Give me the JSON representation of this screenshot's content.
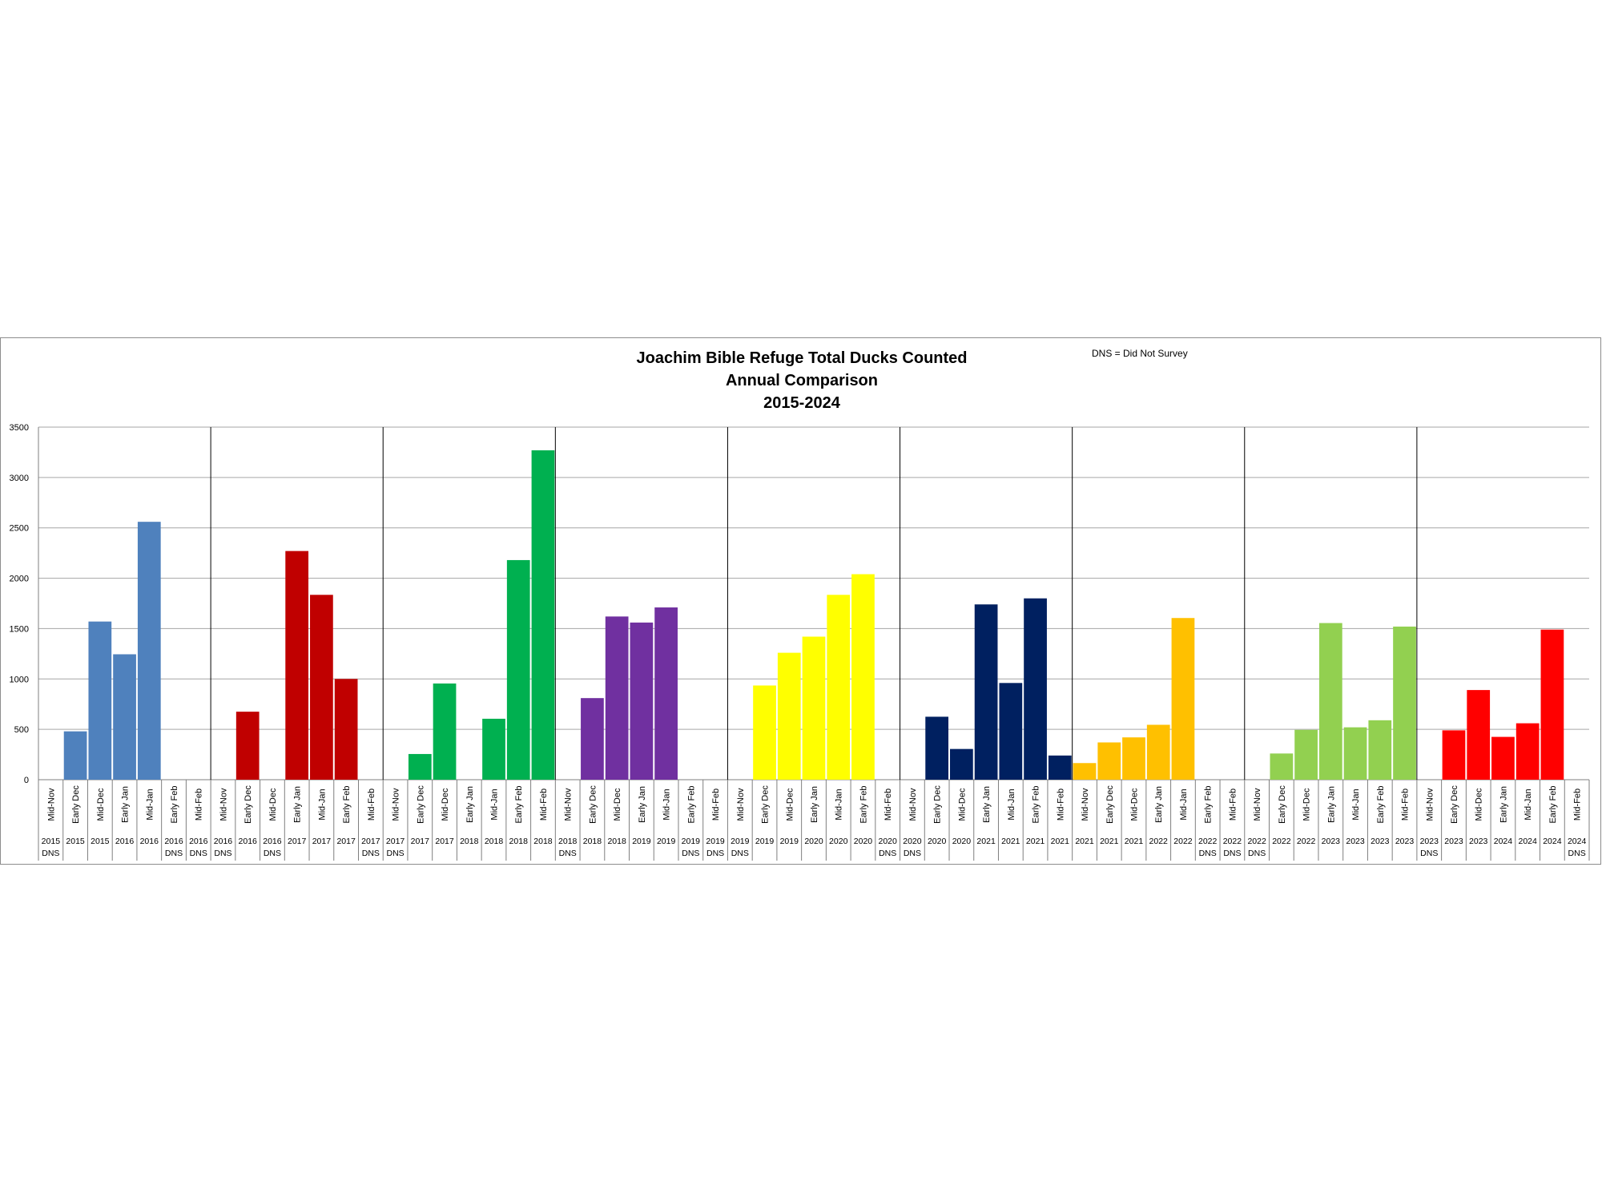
{
  "chart_data": {
    "type": "bar",
    "title_lines": [
      "Joachim Bible Refuge Total Ducks Counted",
      "Annual Comparison",
      "2015-2024"
    ],
    "note": "DNS = Did Not Survey",
    "ylim": [
      0,
      3500
    ],
    "yticks": [
      0,
      500,
      1000,
      1500,
      2000,
      2500,
      3000,
      3500
    ],
    "grid": true,
    "legend": "none",
    "dns_label": "DNS",
    "seasons": [
      {
        "color": "#4f81bd",
        "bars": [
          {
            "period": "Mid-Nov",
            "year": "2015",
            "value": null,
            "dns": true
          },
          {
            "period": "Early Dec",
            "year": "2015",
            "value": 480
          },
          {
            "period": "Mid-Dec",
            "year": "2015",
            "value": 1570
          },
          {
            "period": "Early Jan",
            "year": "2016",
            "value": 1245
          },
          {
            "period": "Mid-Jan",
            "year": "2016",
            "value": 2560
          },
          {
            "period": "Early Feb",
            "year": "2016",
            "value": null,
            "dns": true
          },
          {
            "period": "Mid-Feb",
            "year": "2016",
            "value": null,
            "dns": true
          }
        ]
      },
      {
        "color": "#c00000",
        "bars": [
          {
            "period": "Mid-Nov",
            "year": "2016",
            "value": null,
            "dns": true
          },
          {
            "period": "Early Dec",
            "year": "2016",
            "value": 675
          },
          {
            "period": "Mid-Dec",
            "year": "2016",
            "value": null,
            "dns": true
          },
          {
            "period": "Early Jan",
            "year": "2017",
            "value": 2270
          },
          {
            "period": "Mid-Jan",
            "year": "2017",
            "value": 1835
          },
          {
            "period": "Early Feb",
            "year": "2017",
            "value": 1000
          },
          {
            "period": "Mid-Feb",
            "year": "2017",
            "value": null,
            "dns": true
          }
        ]
      },
      {
        "color": "#00b050",
        "bars": [
          {
            "period": "Mid-Nov",
            "year": "2017",
            "value": null,
            "dns": true
          },
          {
            "period": "Early Dec",
            "year": "2017",
            "value": 255
          },
          {
            "period": "Mid-Dec",
            "year": "2017",
            "value": 955
          },
          {
            "period": "Early Jan",
            "year": "2018",
            "value": 0
          },
          {
            "period": "Mid-Jan",
            "year": "2018",
            "value": 605
          },
          {
            "period": "Early Feb",
            "year": "2018",
            "value": 2180
          },
          {
            "period": "Mid-Feb",
            "year": "2018",
            "value": 3270
          }
        ]
      },
      {
        "color": "#7030a0",
        "bars": [
          {
            "period": "Mid-Nov",
            "year": "2018",
            "value": null,
            "dns": true
          },
          {
            "period": "Early Dec",
            "year": "2018",
            "value": 810
          },
          {
            "period": "Mid-Dec",
            "year": "2018",
            "value": 1620
          },
          {
            "period": "Early Jan",
            "year": "2019",
            "value": 1560
          },
          {
            "period": "Mid-Jan",
            "year": "2019",
            "value": 1710
          },
          {
            "period": "Early Feb",
            "year": "2019",
            "value": null,
            "dns": true
          },
          {
            "period": "Mid-Feb",
            "year": "2019",
            "value": null,
            "dns": true
          }
        ]
      },
      {
        "color": "#ffff00",
        "bars": [
          {
            "period": "Mid-Nov",
            "year": "2019",
            "value": null,
            "dns": true
          },
          {
            "period": "Early Dec",
            "year": "2019",
            "value": 935
          },
          {
            "period": "Mid-Dec",
            "year": "2019",
            "value": 1260
          },
          {
            "period": "Early Jan",
            "year": "2020",
            "value": 1420
          },
          {
            "period": "Mid-Jan",
            "year": "2020",
            "value": 1835
          },
          {
            "period": "Early Feb",
            "year": "2020",
            "value": 2040
          },
          {
            "period": "Mid-Feb",
            "year": "2020",
            "value": null,
            "dns": true
          }
        ]
      },
      {
        "color": "#002060",
        "bars": [
          {
            "period": "Mid-Nov",
            "year": "2020",
            "value": null,
            "dns": true
          },
          {
            "period": "Early Dec",
            "year": "2020",
            "value": 625
          },
          {
            "period": "Mid-Dec",
            "year": "2020",
            "value": 305
          },
          {
            "period": "Early Jan",
            "year": "2021",
            "value": 1740
          },
          {
            "period": "Mid-Jan",
            "year": "2021",
            "value": 960
          },
          {
            "period": "Early Feb",
            "year": "2021",
            "value": 1800
          },
          {
            "period": "Mid-Feb",
            "year": "2021",
            "value": 240
          }
        ]
      },
      {
        "color": "#ffc000",
        "bars": [
          {
            "period": "Mid-Nov",
            "year": "2021",
            "value": 165
          },
          {
            "period": "Early Dec",
            "year": "2021",
            "value": 370
          },
          {
            "period": "Mid-Dec",
            "year": "2021",
            "value": 420
          },
          {
            "period": "Early Jan",
            "year": "2022",
            "value": 545
          },
          {
            "period": "Mid-Jan",
            "year": "2022",
            "value": 1605
          },
          {
            "period": "Early Feb",
            "year": "2022",
            "value": null,
            "dns": true
          },
          {
            "period": "Mid-Feb",
            "year": "2022",
            "value": null,
            "dns": true
          }
        ]
      },
      {
        "color": "#92d050",
        "bars": [
          {
            "period": "Mid-Nov",
            "year": "2022",
            "value": null,
            "dns": true
          },
          {
            "period": "Early Dec",
            "year": "2022",
            "value": 260
          },
          {
            "period": "Mid-Dec",
            "year": "2022",
            "value": 495
          },
          {
            "period": "Early Jan",
            "year": "2023",
            "value": 1555
          },
          {
            "period": "Mid-Jan",
            "year": "2023",
            "value": 520
          },
          {
            "period": "Early Feb",
            "year": "2023",
            "value": 590
          },
          {
            "period": "Mid-Feb",
            "year": "2023",
            "value": 1520
          }
        ]
      },
      {
        "color": "#ff0000",
        "bars": [
          {
            "period": "Mid-Nov",
            "year": "2023",
            "value": null,
            "dns": true
          },
          {
            "period": "Early Dec",
            "year": "2023",
            "value": 490
          },
          {
            "period": "Mid-Dec",
            "year": "2023",
            "value": 890
          },
          {
            "period": "Early Jan",
            "year": "2024",
            "value": 425
          },
          {
            "period": "Mid-Jan",
            "year": "2024",
            "value": 560
          },
          {
            "period": "Early Feb",
            "year": "2024",
            "value": 1490
          },
          {
            "period": "Mid-Feb",
            "year": "2024",
            "value": null,
            "dns": true
          }
        ]
      }
    ]
  }
}
